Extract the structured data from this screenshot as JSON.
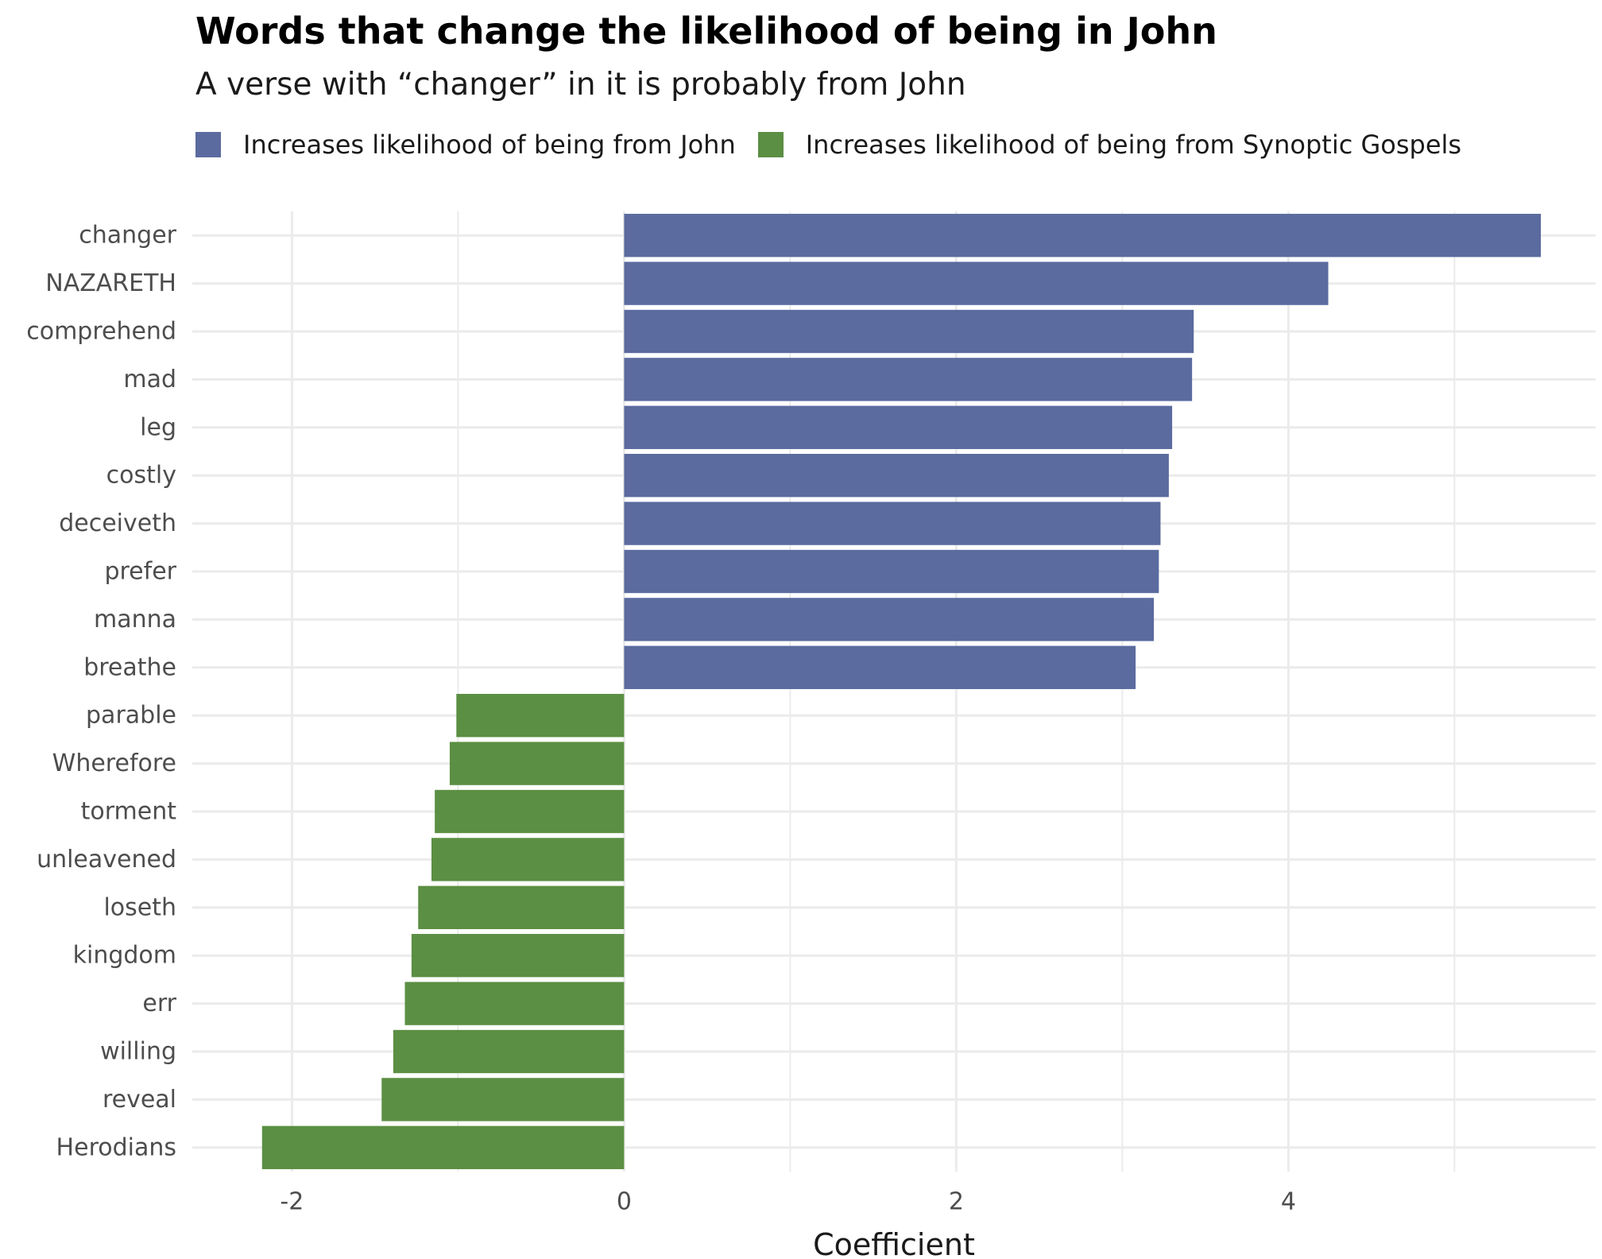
{
  "chart_data": {
    "type": "bar",
    "orientation": "horizontal",
    "title": "Words that change the likelihood of being in John",
    "subtitle": "A verse with “changer” in it is probably from John",
    "xlabel": "Coefficient",
    "ylabel": "",
    "xlim": [
      -2.6,
      5.85
    ],
    "xticks": [
      -2,
      0,
      2,
      4
    ],
    "grid": true,
    "legend_position": "top",
    "legend": [
      {
        "label": "Increases likelihood of being from John",
        "color": "#5b6b9f"
      },
      {
        "label": "Increases likelihood of being from Synoptic Gospels",
        "color": "#5b8f43"
      }
    ],
    "categories": [
      "changer",
      "NAZARETH",
      "comprehend",
      "mad",
      "leg",
      "costly",
      "deceiveth",
      "prefer",
      "manna",
      "breathe",
      "parable",
      "Wherefore",
      "torment",
      "unleavened",
      "loseth",
      "kingdom",
      "err",
      "willing",
      "reveal",
      "Herodians"
    ],
    "values": [
      5.52,
      4.24,
      3.43,
      3.42,
      3.3,
      3.28,
      3.23,
      3.22,
      3.19,
      3.08,
      -1.01,
      -1.05,
      -1.14,
      -1.16,
      -1.24,
      -1.28,
      -1.32,
      -1.39,
      -1.46,
      -2.18
    ],
    "colors": {
      "positive": "#5b6b9f",
      "negative": "#5b8f43"
    }
  }
}
